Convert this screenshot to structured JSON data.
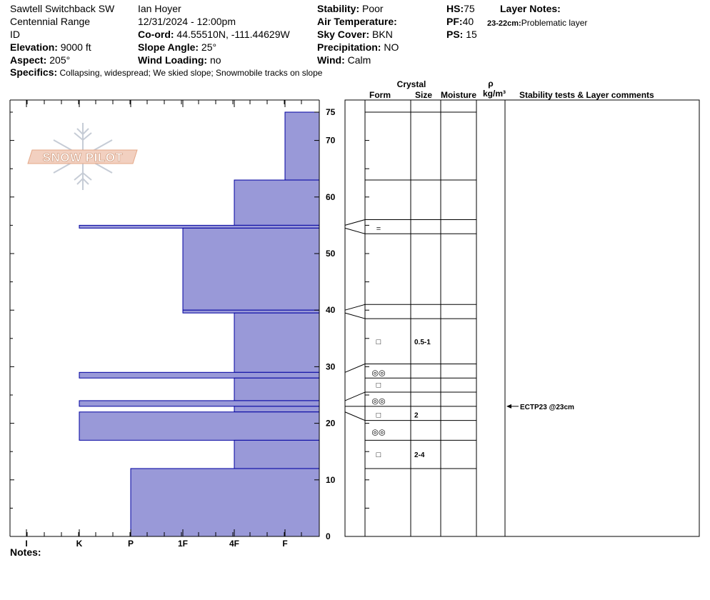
{
  "header": {
    "col1": [
      "Sawtell Switchback SW",
      "Centennial Range",
      "ID"
    ],
    "elevation": {
      "label": "Elevation:",
      "value": " 9000 ft"
    },
    "aspect": {
      "label": "Aspect:",
      "value": " 205°"
    },
    "observer": "Ian Hoyer",
    "datetime": "12/31/2024 - 12:00pm",
    "coord": {
      "label": "Co-ord:",
      "value": " 44.55510N, -111.44629W"
    },
    "slope": {
      "label": "Slope Angle:",
      "value": " 25°"
    },
    "wind_loading": {
      "label": "Wind Loading:",
      "value": " no"
    },
    "stability": {
      "label": "Stability:",
      "value": " Poor"
    },
    "air_temp": {
      "label": "Air Temperature:",
      "value": ""
    },
    "sky": {
      "label": "Sky Cover:",
      "value": " BKN"
    },
    "precip": {
      "label": "Precipitation:",
      "value": " NO"
    },
    "wind": {
      "label": "Wind:",
      "value": "  Calm"
    },
    "hs": {
      "label": "HS:",
      "value": "75"
    },
    "pf": {
      "label": "PF:",
      "value": "40"
    },
    "ps": {
      "label": "PS:",
      "value": " 15"
    },
    "layer_notes_title": "Layer Notes:",
    "layer_note": {
      "label": "23-22cm:",
      "value": "Problematic layer"
    },
    "specifics": {
      "label": "Specifics:",
      "value": " Collapsing, widespread; We skied slope; Snowmobile tracks on slope"
    },
    "notes_label": "Notes:"
  },
  "logo_text": "SNOW PILOT",
  "colors": {
    "layer_fill": "#9999D8",
    "layer_stroke": "#0000A0",
    "grid": "#000000"
  },
  "chart_data": {
    "type": "bar",
    "orientation": "horizontal",
    "hardness_scale": [
      "I",
      "K",
      "P",
      "1F",
      "4F",
      "F"
    ],
    "y_ticks": [
      0,
      10,
      20,
      30,
      40,
      50,
      60,
      70,
      75
    ],
    "y_range": [
      0,
      75
    ],
    "layers": [
      {
        "bottom": 63,
        "top": 75,
        "hardness": "F"
      },
      {
        "bottom": 55,
        "top": 63,
        "hardness": "4F"
      },
      {
        "bottom": 54.5,
        "top": 55,
        "hardness": "K"
      },
      {
        "bottom": 40,
        "top": 54.5,
        "hardness": "1F"
      },
      {
        "bottom": 39.5,
        "top": 40,
        "hardness": "1F"
      },
      {
        "bottom": 29,
        "top": 39.5,
        "hardness": "4F"
      },
      {
        "bottom": 28,
        "top": 29,
        "hardness": "K"
      },
      {
        "bottom": 24,
        "top": 28,
        "hardness": "4F"
      },
      {
        "bottom": 23,
        "top": 24,
        "hardness": "K"
      },
      {
        "bottom": 22,
        "top": 23,
        "hardness": "4F"
      },
      {
        "bottom": 17,
        "top": 22,
        "hardness": "K"
      },
      {
        "bottom": 12,
        "top": 17,
        "hardness": "4F"
      },
      {
        "bottom": 0,
        "top": 12,
        "hardness": "P"
      }
    ]
  },
  "table": {
    "crystal_header": "Crystal",
    "rho_header": "ρ",
    "form_header": "Form",
    "size_header": "Size",
    "moisture_header": "Moisture",
    "density_header": "kg/m³",
    "comments_header": "Stability tests & Layer comments",
    "boundaries": [
      75,
      63,
      56,
      53.5,
      41,
      38.5,
      30.5,
      28,
      25.5,
      23,
      20.5,
      17,
      12,
      0
    ],
    "rows": [
      {
        "depth": 54.5,
        "form": "=",
        "size": ""
      },
      {
        "depth": 34.5,
        "form": "□",
        "size": "0.5-1"
      },
      {
        "depth": 29,
        "form": "◎◎",
        "size": ""
      },
      {
        "depth": 26.8,
        "form": "□",
        "size": ""
      },
      {
        "depth": 24,
        "form": "◎◎",
        "size": ""
      },
      {
        "depth": 21.5,
        "form": "□",
        "size": "2"
      },
      {
        "depth": 18.5,
        "form": "◎◎",
        "size": ""
      },
      {
        "depth": 14.5,
        "form": "□",
        "size": "2-4"
      }
    ],
    "test_result": {
      "depth": 23,
      "text": "ECTP23 @23cm"
    }
  }
}
